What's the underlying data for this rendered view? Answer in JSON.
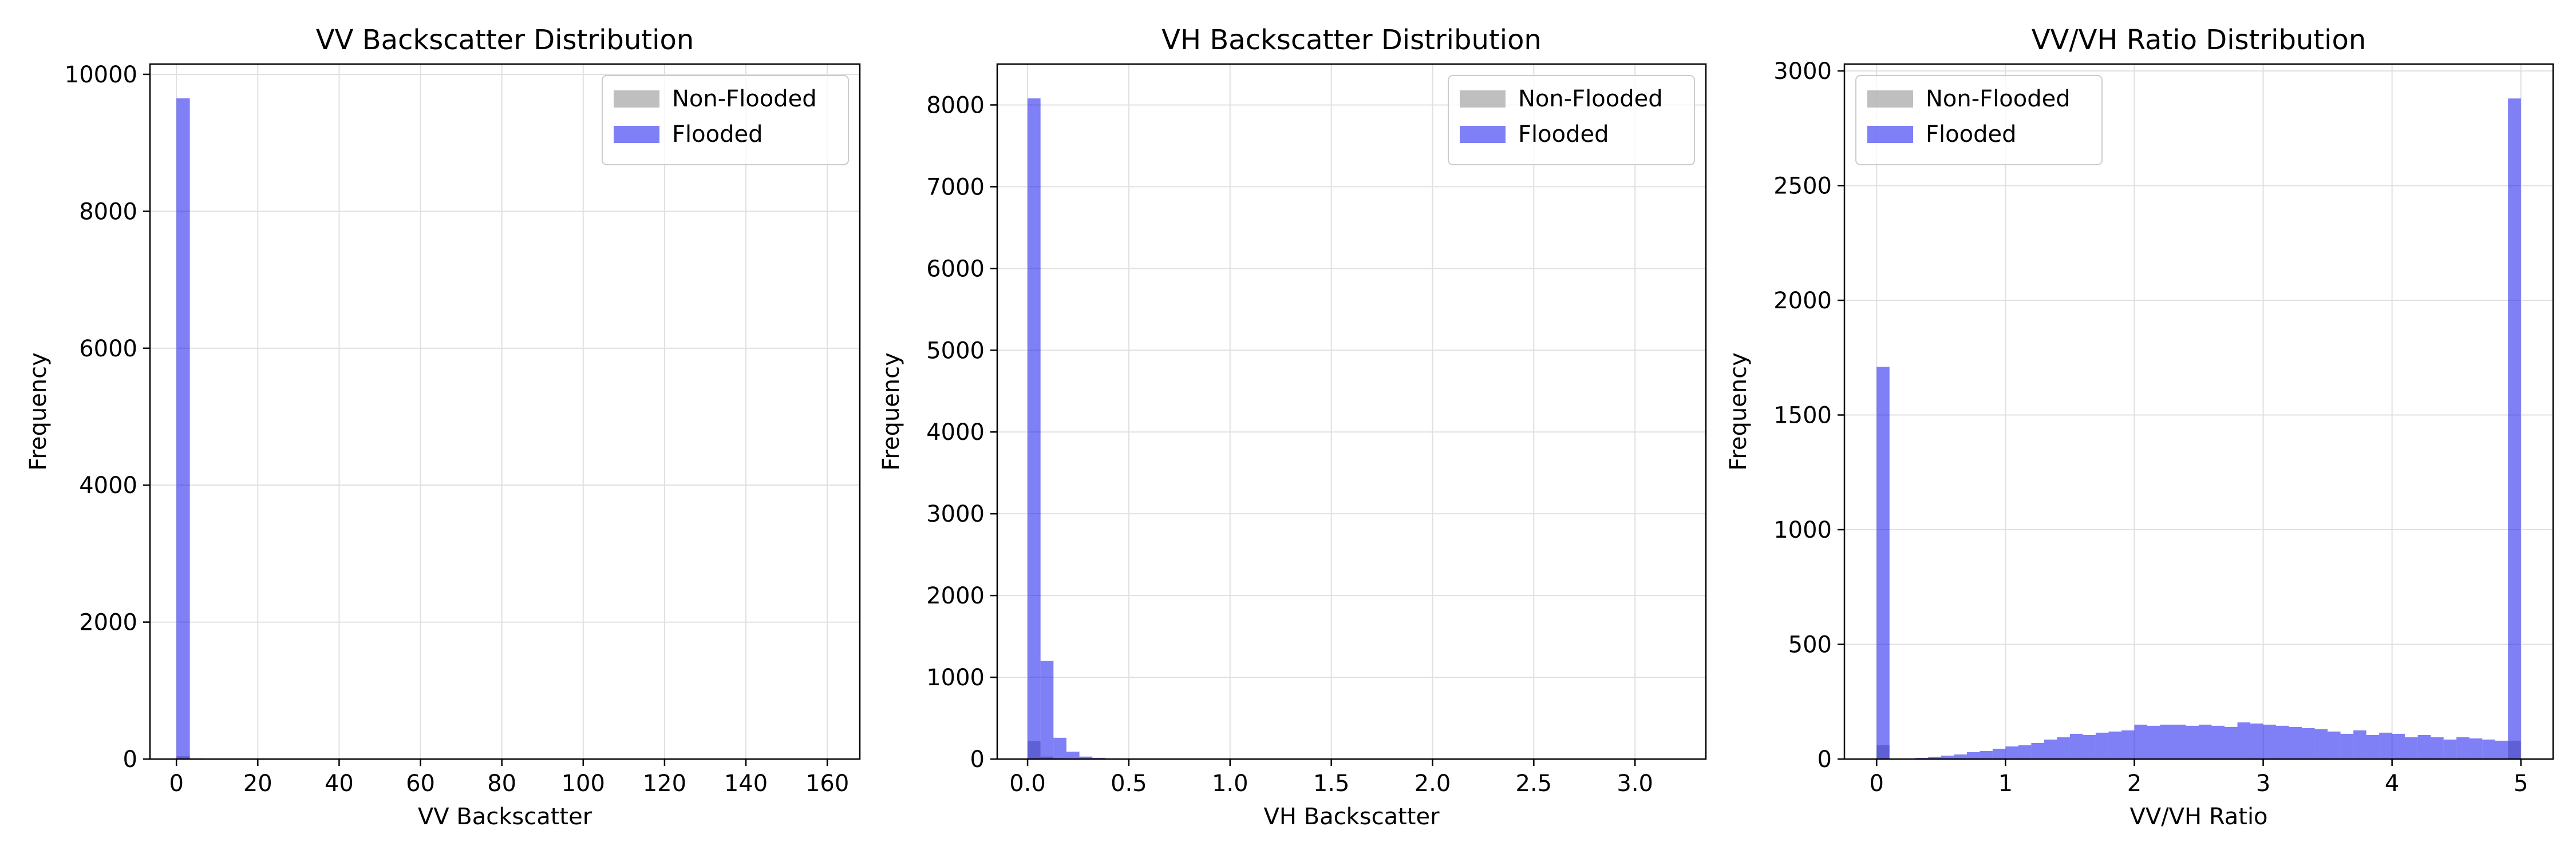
{
  "colors": {
    "non_flooded": "#808080",
    "flooded": "#0000ee",
    "grid": "#e0e0e0",
    "axes": "#000000"
  },
  "chart_data": [
    {
      "type": "bar",
      "title": "VV Backscatter Distribution",
      "xlabel": "VV Backscatter",
      "ylabel": "Frequency",
      "xlim": [
        -6.5,
        168
      ],
      "ylim": [
        0,
        10150
      ],
      "xticks": [
        0,
        20,
        40,
        60,
        80,
        100,
        120,
        140,
        160
      ],
      "xtick_labels": [
        "0",
        "20",
        "40",
        "60",
        "80",
        "100",
        "120",
        "140",
        "160"
      ],
      "yticks": [
        0,
        2000,
        4000,
        6000,
        8000,
        10000
      ],
      "ytick_labels": [
        "0",
        "2000",
        "4000",
        "6000",
        "8000",
        "10000"
      ],
      "grid": true,
      "legend_position": "top-right",
      "series": [
        {
          "name": "Non-Flooded",
          "bins": [
            [
              0,
              3.3,
              40
            ]
          ]
        },
        {
          "name": "Flooded",
          "bins": [
            [
              0,
              3.3,
              9650
            ],
            [
              3.3,
              6.6,
              10
            ],
            [
              6.6,
              9.9,
              5
            ],
            [
              9.9,
              13.2,
              3
            ]
          ]
        }
      ]
    },
    {
      "type": "bar",
      "title": "VH Backscatter Distribution",
      "xlabel": "VH Backscatter",
      "ylabel": "Frequency",
      "xlim": [
        -0.15,
        3.35
      ],
      "ylim": [
        0,
        8500
      ],
      "xticks": [
        0.0,
        0.5,
        1.0,
        1.5,
        2.0,
        2.5,
        3.0
      ],
      "xtick_labels": [
        "0.0",
        "0.5",
        "1.0",
        "1.5",
        "2.0",
        "2.5",
        "3.0"
      ],
      "yticks": [
        0,
        1000,
        2000,
        3000,
        4000,
        5000,
        6000,
        7000,
        8000
      ],
      "ytick_labels": [
        "0",
        "1000",
        "2000",
        "3000",
        "4000",
        "5000",
        "6000",
        "7000",
        "8000"
      ],
      "grid": true,
      "legend_position": "top-right",
      "series": [
        {
          "name": "Non-Flooded",
          "bins": [
            [
              0,
              0.064,
              220
            ],
            [
              0.064,
              0.128,
              30
            ],
            [
              0.128,
              0.192,
              10
            ]
          ]
        },
        {
          "name": "Flooded",
          "bins": [
            [
              0,
              0.064,
              8080
            ],
            [
              0.064,
              0.128,
              1200
            ],
            [
              0.128,
              0.192,
              260
            ],
            [
              0.192,
              0.256,
              90
            ],
            [
              0.256,
              0.32,
              30
            ],
            [
              0.32,
              0.384,
              15
            ],
            [
              0.384,
              0.448,
              8
            ],
            [
              0.448,
              0.512,
              5
            ],
            [
              0.512,
              0.576,
              3
            ]
          ]
        }
      ]
    },
    {
      "type": "bar",
      "title": "VV/VH Ratio Distribution",
      "xlabel": "VV/VH Ratio",
      "ylabel": "Frequency",
      "xlim": [
        -0.25,
        5.25
      ],
      "ylim": [
        0,
        3030
      ],
      "xticks": [
        0,
        1,
        2,
        3,
        4,
        5
      ],
      "xtick_labels": [
        "0",
        "1",
        "2",
        "3",
        "4",
        "5"
      ],
      "yticks": [
        0,
        500,
        1000,
        1500,
        2000,
        2500,
        3000
      ],
      "ytick_labels": [
        "0",
        "500",
        "1000",
        "1500",
        "2000",
        "2500",
        "3000"
      ],
      "grid": true,
      "legend_position": "top-left",
      "bin_start": 0,
      "bin_width": 0.1,
      "series": [
        {
          "name": "Non-Flooded",
          "values": [
            60,
            0,
            0,
            0,
            0,
            0,
            0,
            0,
            0,
            0,
            0,
            0,
            0,
            0,
            0,
            0,
            0,
            0,
            0,
            0,
            0,
            0,
            0,
            0,
            0,
            0,
            0,
            0,
            0,
            0,
            0,
            0,
            0,
            0,
            0,
            0,
            0,
            0,
            0,
            0,
            0,
            0,
            0,
            0,
            0,
            0,
            0,
            0,
            0,
            80
          ]
        },
        {
          "name": "Flooded",
          "values": [
            1710,
            0,
            0,
            5,
            10,
            15,
            20,
            30,
            35,
            45,
            55,
            60,
            70,
            85,
            95,
            110,
            105,
            115,
            120,
            125,
            150,
            145,
            150,
            150,
            145,
            150,
            145,
            140,
            160,
            155,
            150,
            145,
            140,
            135,
            130,
            120,
            110,
            125,
            105,
            115,
            110,
            95,
            105,
            95,
            85,
            95,
            90,
            85,
            80,
            2880
          ]
        }
      ]
    }
  ]
}
